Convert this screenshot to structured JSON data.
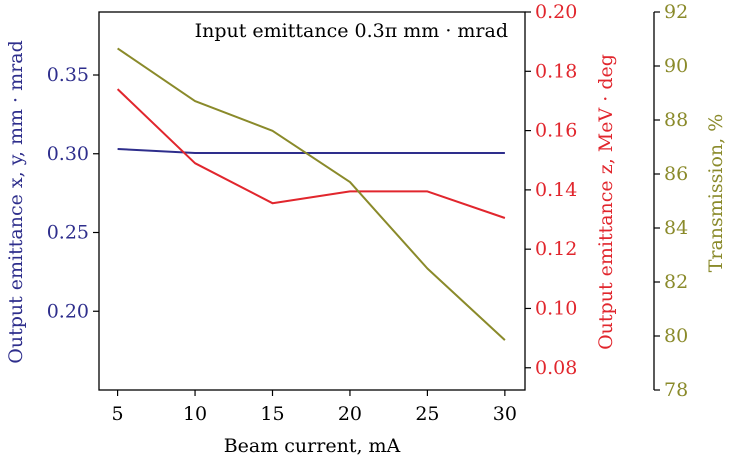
{
  "chart_data": {
    "type": "line",
    "annotation": "Input emittance 0.3π  mm · mrad",
    "xlabel": "Beam current, mA",
    "x": [
      5,
      10,
      15,
      20,
      25,
      30
    ],
    "xlim": [
      3.8,
      31.3
    ],
    "x_ticks": [
      "5",
      "10",
      "15",
      "20",
      "25",
      "30"
    ],
    "grid": false,
    "axes": {
      "left": {
        "label": "Output emittance x, y, mm · mrad",
        "ylim": [
          0.15,
          0.39
        ],
        "ticks": [
          "0.20",
          "0.25",
          "0.30",
          "0.35"
        ],
        "color": "#2e2e8c"
      },
      "right1": {
        "label": "Output emittance z, MeV · deg",
        "ylim": [
          0.0725,
          0.2
        ],
        "ticks": [
          "0.08",
          "0.10",
          "0.12",
          "0.14",
          "0.16",
          "0.18",
          "0.20"
        ],
        "color": "#e1262d"
      },
      "right2": {
        "label": "Transmission, %",
        "ylim": [
          78,
          92
        ],
        "ticks": [
          "78",
          "80",
          "82",
          "84",
          "86",
          "88",
          "90",
          "92"
        ],
        "color": "#8a8a2a"
      }
    },
    "series": [
      {
        "axis": "left",
        "values": [
          0.303,
          0.3005,
          0.3005,
          0.3005,
          0.3005,
          0.3005
        ],
        "color": "#2e2e8c"
      },
      {
        "axis": "right1",
        "values": [
          0.174,
          0.149,
          0.1355,
          0.1395,
          0.1395,
          0.1305
        ],
        "color": "#e1262d"
      },
      {
        "axis": "right2",
        "values": [
          90.65,
          88.7,
          87.6,
          85.7,
          82.5,
          79.85
        ],
        "color": "#8a8a2a"
      }
    ]
  }
}
